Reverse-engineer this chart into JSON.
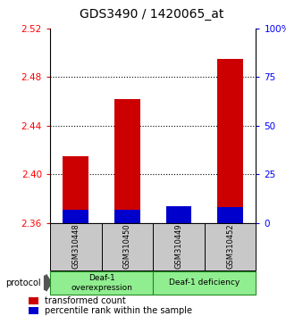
{
  "title": "GDS3490 / 1420065_at",
  "samples": [
    "GSM310448",
    "GSM310450",
    "GSM310449",
    "GSM310452"
  ],
  "red_values": [
    2.415,
    2.462,
    2.373,
    2.495
  ],
  "blue_values": [
    2.371,
    2.371,
    2.374,
    2.373
  ],
  "y_min": 2.36,
  "y_max": 2.52,
  "y_ticks": [
    2.36,
    2.4,
    2.44,
    2.48,
    2.52
  ],
  "y_tick_labels": [
    "2.36",
    "2.40",
    "2.44",
    "2.48",
    "2.52"
  ],
  "right_y_ticks": [
    0,
    25,
    50,
    75,
    100
  ],
  "right_y_tick_labels": [
    "0",
    "25",
    "50",
    "75",
    "100%"
  ],
  "bar_width": 0.5,
  "red_color": "#CC0000",
  "blue_color": "#0000CC",
  "legend_red_label": "transformed count",
  "legend_blue_label": "percentile rank within the sample",
  "background_samples": "#C8C8C8",
  "group1_label": "Deaf-1\noverexpression",
  "group2_label": "Deaf-1 deficiency",
  "group_color": "#90EE90",
  "group_edge_color": "#228B22",
  "title_fontsize": 10,
  "tick_fontsize": 7.5,
  "sample_fontsize": 6,
  "legend_fontsize": 7,
  "protocol_fontsize": 7
}
